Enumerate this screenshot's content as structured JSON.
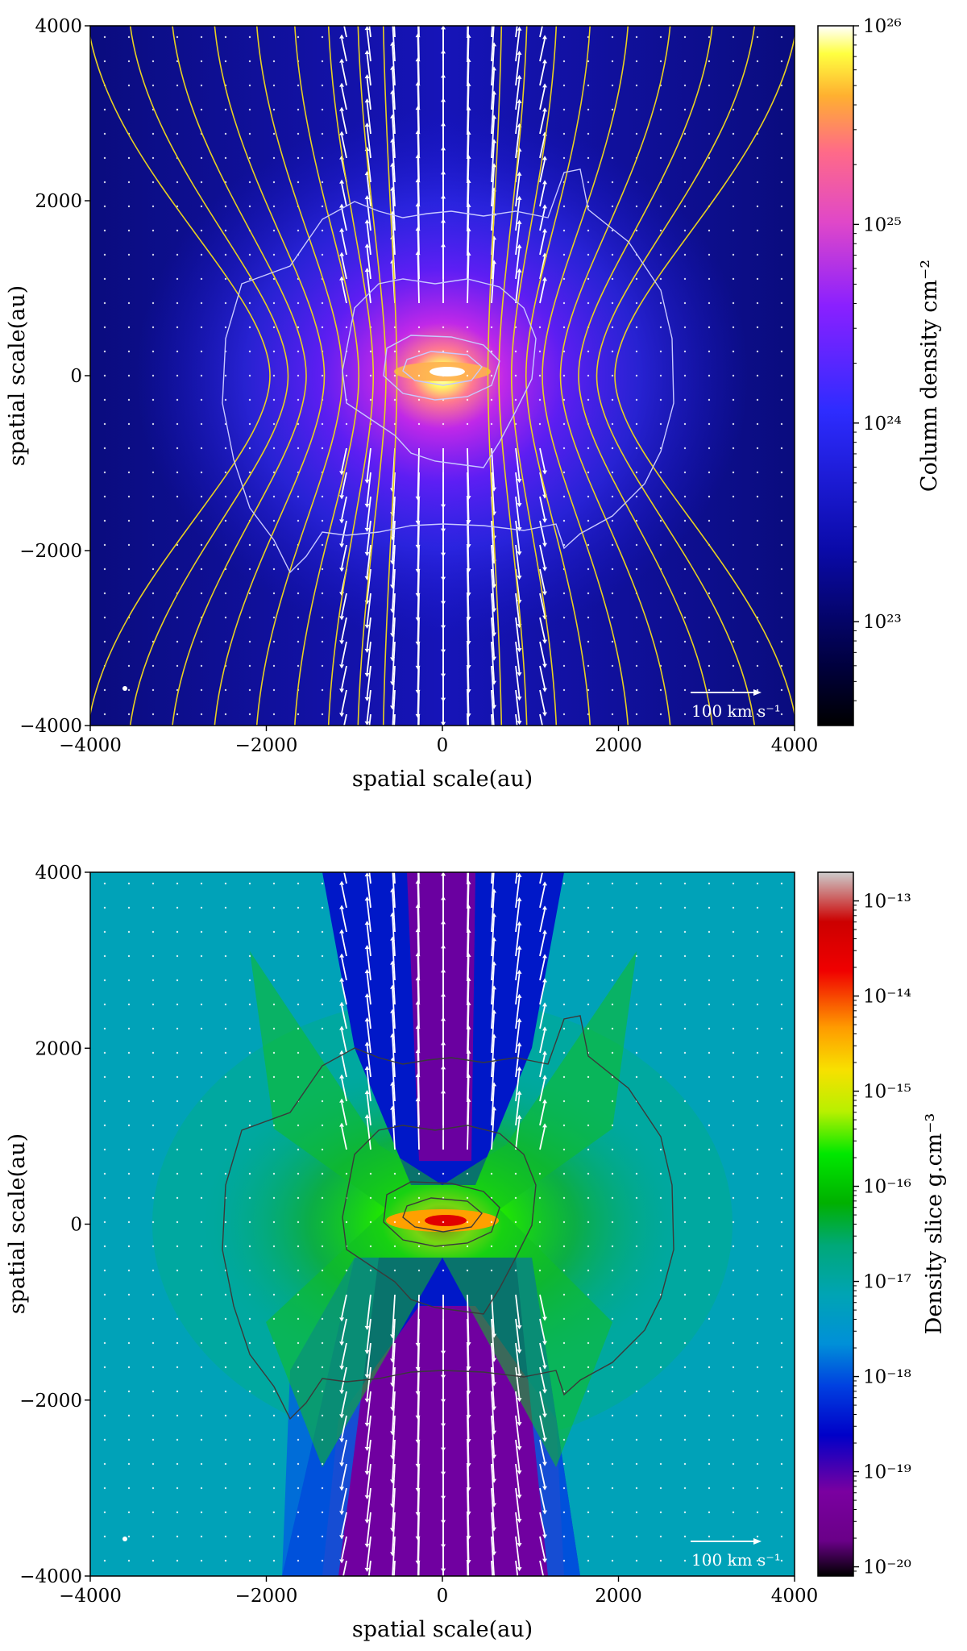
{
  "chart_data": [
    {
      "type": "heatmap",
      "title": "",
      "xlabel": "spatial scale(au)",
      "ylabel": "spatial scale(au)",
      "xlim": [
        -4000,
        4000
      ],
      "ylim": [
        -4000,
        4000
      ],
      "x_ticks": [
        "−4000",
        "−2000",
        "0",
        "2000",
        "4000"
      ],
      "y_ticks": [
        "4000",
        "2000",
        "0",
        "−2000",
        "−4000"
      ],
      "colorbar": {
        "label": "Column density cm⁻²",
        "scale": "log",
        "range": [
          3e+22,
          1e+26
        ],
        "tick_labels": [
          "10²⁶",
          "10²⁵",
          "10²⁴",
          "10²³"
        ],
        "tick_values": [
          1e+26,
          1e+25,
          1e+24,
          1e+23
        ],
        "colormap": "gnuplot2"
      },
      "scale_arrow_label": "100 km s⁻¹",
      "overlays": [
        "magnetic field lines (yellow)",
        "velocity vectors (white)",
        "density contours (white)"
      ],
      "grid": false
    },
    {
      "type": "heatmap",
      "title": "",
      "xlabel": "spatial scale(au)",
      "ylabel": "spatial scale(au)",
      "xlim": [
        -4000,
        4000
      ],
      "ylim": [
        -4000,
        4000
      ],
      "x_ticks": [
        "−4000",
        "−2000",
        "0",
        "2000",
        "4000"
      ],
      "y_ticks": [
        "4000",
        "2000",
        "0",
        "−2000",
        "−4000"
      ],
      "colorbar": {
        "label": "Density slice g.cm⁻³",
        "scale": "log",
        "range": [
          8e-21,
          2e-13
        ],
        "tick_labels": [
          "10⁻¹³",
          "10⁻¹⁴",
          "10⁻¹⁵",
          "10⁻¹⁶",
          "10⁻¹⁷",
          "10⁻¹⁸",
          "10⁻¹⁹",
          "10⁻²⁰"
        ],
        "tick_values": [
          1e-13,
          1e-14,
          1e-15,
          1e-16,
          1e-17,
          1e-18,
          1e-19,
          1e-20
        ],
        "colormap": "nipy_spectral"
      },
      "scale_arrow_label": "100 km s⁻¹",
      "overlays": [
        "velocity vectors (white)",
        "density contours (dark grey)"
      ],
      "grid": false
    }
  ]
}
